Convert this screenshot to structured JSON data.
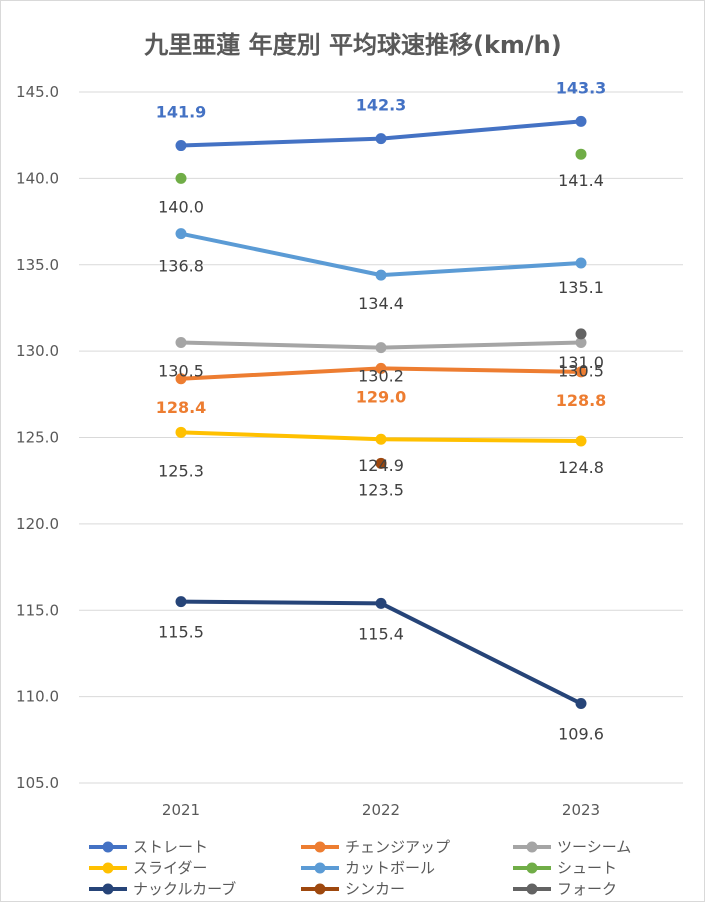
{
  "chart_data": {
    "type": "line",
    "title": "九里亜蓮 年度別 平均球速推移(km/h)",
    "categories": [
      "2021",
      "2022",
      "2023"
    ],
    "ylim": [
      105,
      145
    ],
    "yticks": [
      "145.0",
      "140.0",
      "135.0",
      "130.0",
      "125.0",
      "120.0",
      "115.0",
      "110.0",
      "105.0"
    ],
    "grid": true,
    "legend_position": "bottom",
    "series": [
      {
        "name": "ストレート",
        "color": "#4472C4",
        "values": [
          141.9,
          142.3,
          143.3
        ],
        "labels": [
          "141.9",
          "142.3",
          "143.3"
        ],
        "label_color": "#4472C4",
        "label_bold": true
      },
      {
        "name": "チェンジアップ",
        "color": "#ED7D31",
        "values": [
          128.4,
          129.0,
          128.8
        ],
        "labels": [
          "128.4",
          "129.0",
          "128.8"
        ],
        "label_color": "#ED7D31",
        "label_bold": true
      },
      {
        "name": "ツーシーム",
        "color": "#A5A5A5",
        "values": [
          130.5,
          130.2,
          130.5
        ],
        "labels": [
          "130.5",
          "130.2",
          "130.5"
        ],
        "label_color": "#404040",
        "label_bold": false
      },
      {
        "name": "スライダー",
        "color": "#FFC000",
        "values": [
          125.3,
          124.9,
          124.8
        ],
        "labels": [
          "125.3",
          "124.9",
          "124.8"
        ],
        "label_color": "#404040",
        "label_bold": false
      },
      {
        "name": "カットボール",
        "color": "#5B9BD5",
        "values": [
          136.8,
          134.4,
          135.1
        ],
        "labels": [
          "136.8",
          "134.4",
          "135.1"
        ],
        "label_color": "#404040",
        "label_bold": false
      },
      {
        "name": "シュート",
        "color": "#70AD47",
        "values": [
          140.0,
          null,
          141.4
        ],
        "labels": [
          "140.0",
          "",
          "141.4"
        ],
        "label_color": "#404040",
        "label_bold": false
      },
      {
        "name": "ナックルカーブ",
        "color": "#264478",
        "values": [
          115.5,
          115.4,
          109.6
        ],
        "labels": [
          "115.5",
          "115.4",
          "109.6"
        ],
        "label_color": "#404040",
        "label_bold": false
      },
      {
        "name": "シンカー",
        "color": "#9E480E",
        "values": [
          null,
          123.5,
          null
        ],
        "labels": [
          "",
          "123.5",
          ""
        ],
        "label_color": "#404040",
        "label_bold": false
      },
      {
        "name": "フォーク",
        "color": "#636363",
        "values": [
          null,
          null,
          131.0
        ],
        "labels": [
          "",
          "",
          "131.0"
        ],
        "label_color": "#404040",
        "label_bold": false
      }
    ]
  }
}
